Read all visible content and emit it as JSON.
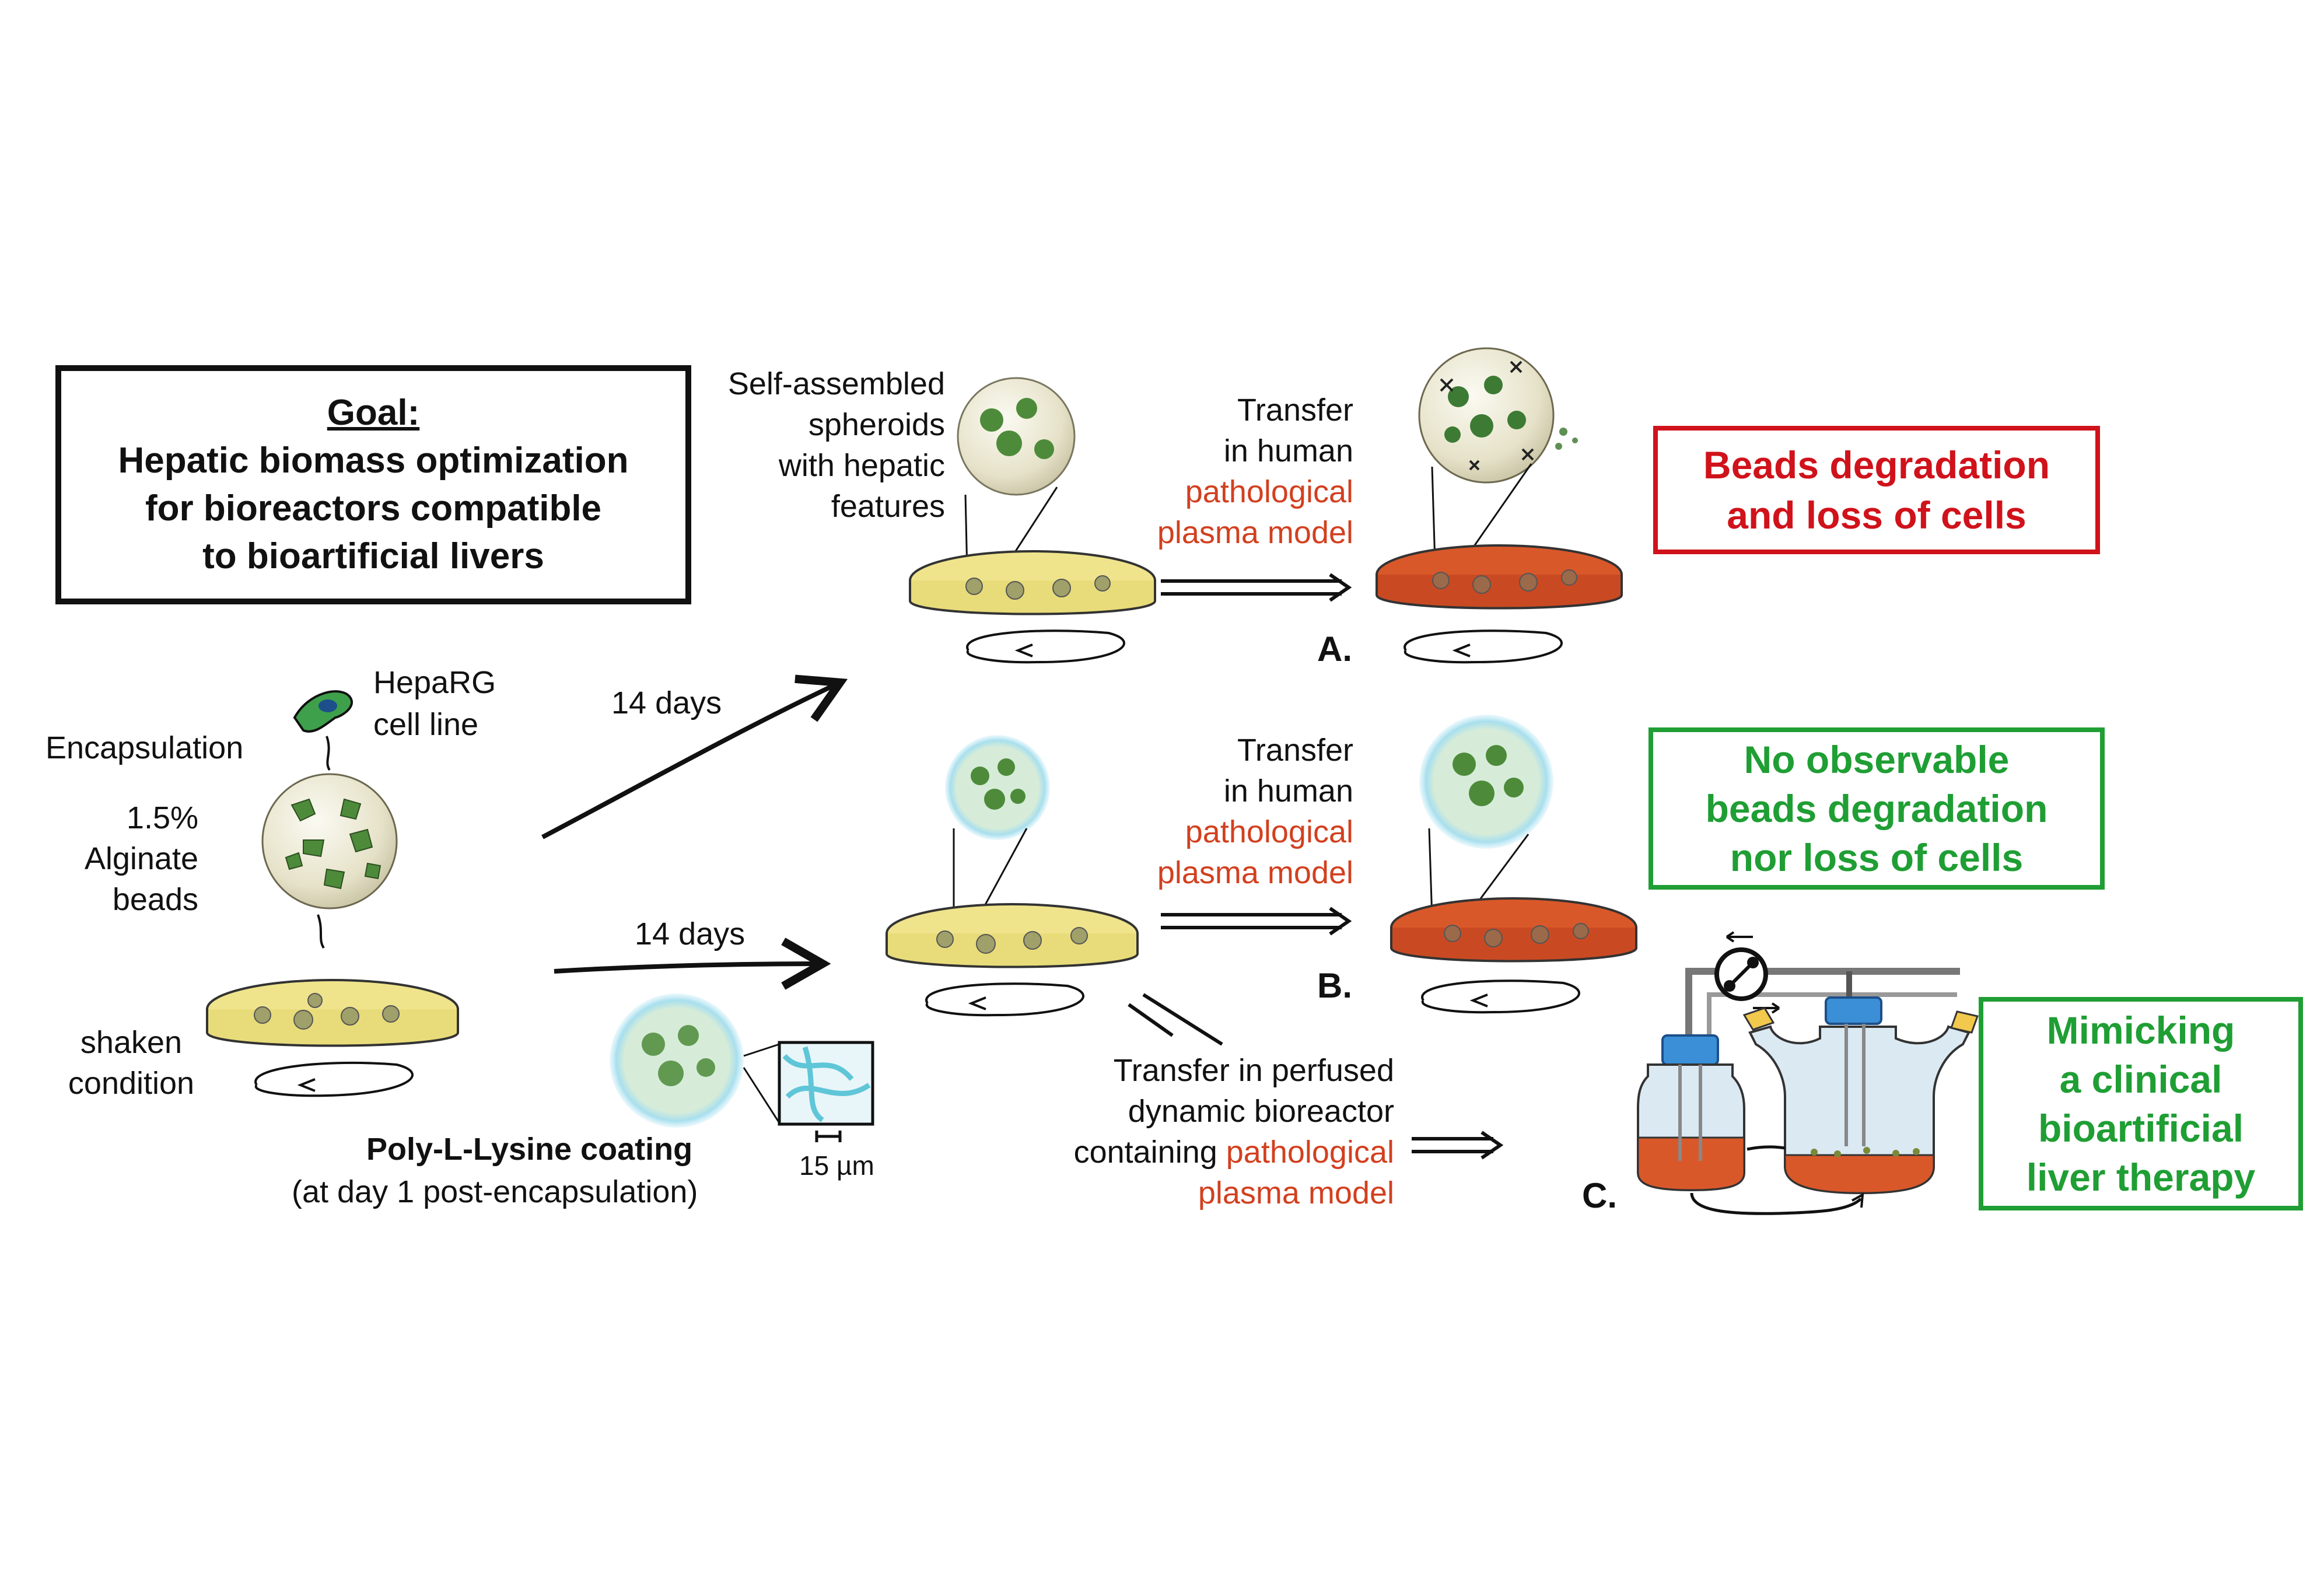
{
  "goal": {
    "heading": "Goal:",
    "lines": [
      "Hepatic biomass optimization",
      "for bioreactors compatible",
      "to bioartificial livers"
    ]
  },
  "left": {
    "cell_line": [
      "HepaRG",
      "cell line"
    ],
    "encapsulation": "Encapsulation",
    "alginate": [
      "1.5%",
      "Alginate",
      "beads"
    ],
    "shaken": [
      "shaken",
      "condition"
    ]
  },
  "coating": {
    "title": "Poly-L-Lysine coating",
    "subtitle": "(at day 1 post-encapsulation)",
    "scale": "15 µm"
  },
  "arrows": {
    "upper_days": "14 days",
    "lower_days": "14 days"
  },
  "spheroids": [
    "Self-assembled",
    "spheroids",
    "with hepatic",
    "features"
  ],
  "transfer_a": {
    "line1": "Transfer",
    "line2": "in human",
    "red1": "pathological",
    "red2": "plasma model"
  },
  "transfer_b": {
    "line1": "Transfer",
    "line2": "in human",
    "red1": "pathological",
    "red2": "plasma model"
  },
  "transfer_c": {
    "line1": "Transfer in perfused",
    "line2": "dynamic bioreactor",
    "line3a": "containing ",
    "line3b": "pathological",
    "line4": "plasma model"
  },
  "labels": {
    "a": "A.",
    "b": "B.",
    "c": "C."
  },
  "results": {
    "a": [
      "Beads degradation",
      "and loss of cells"
    ],
    "b": [
      "No observable",
      "beads degradation",
      "nor loss of cells"
    ],
    "c": [
      "Mimicking",
      "a clinical",
      "bioartificial",
      "liver therapy"
    ]
  },
  "colors": {
    "red_text": "#d2401f",
    "result_red": "#d0121b",
    "result_green": "#1f9e34",
    "medium_yellow": "#efe48c",
    "medium_orange": "#d9582a",
    "coating_blue": "#a8dfee"
  }
}
